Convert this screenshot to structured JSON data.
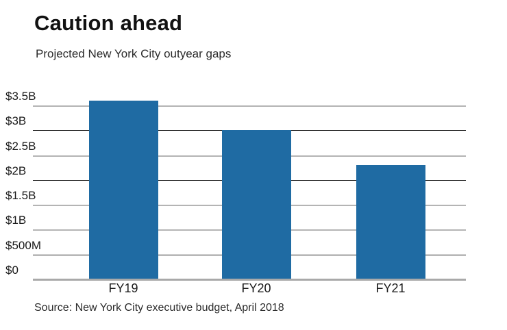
{
  "chart_data": {
    "type": "bar",
    "title": "Caution ahead",
    "subtitle": "Projected New York City outyear gaps",
    "source": "Source: New York City executive budget, April 2018",
    "categories": [
      "FY19",
      "FY20",
      "FY21"
    ],
    "values": [
      3.6,
      3.0,
      2.3
    ],
    "values_unit": "billions of dollars",
    "xlabel": "",
    "ylabel": "",
    "ylim": [
      0,
      3.5
    ],
    "yticks": [
      {
        "label": "$3.5B",
        "value": 3.5
      },
      {
        "label": "$3B",
        "value": 3.0
      },
      {
        "label": "$2.5B",
        "value": 2.5
      },
      {
        "label": "$2B",
        "value": 2.0
      },
      {
        "label": "$1.5B",
        "value": 1.5
      },
      {
        "label": "$1B",
        "value": 1.0
      },
      {
        "label": "$500M",
        "value": 0.5
      },
      {
        "label": "$0",
        "value": 0.0
      }
    ],
    "legend": "none",
    "grid": "horizontal",
    "bar_color": "#1f6ba3",
    "gridline_color": "#b4b4b4",
    "gridline_dark_color": "#1c1c1c",
    "axis_line_color": "#a9a9a9",
    "background": "#ffffff"
  }
}
